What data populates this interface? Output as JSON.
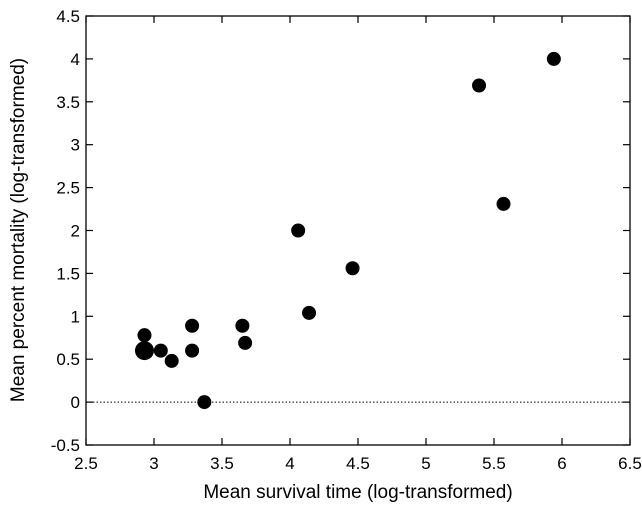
{
  "chart_data": {
    "type": "scatter",
    "title": "",
    "xlabel": "Mean survival time (log-transformed)",
    "ylabel": "Mean percent mortality (log-transformed)",
    "xlim": [
      2.5,
      6.5
    ],
    "ylim": [
      -0.5,
      4.5
    ],
    "xticks": [
      "2.5",
      "3",
      "3.5",
      "4",
      "4.5",
      "5",
      "5.5",
      "6",
      "6.5"
    ],
    "yticks": [
      "-0.5",
      "0",
      "0.5",
      "1",
      "1.5",
      "2",
      "2.5",
      "3",
      "3.5",
      "4",
      "4.5"
    ],
    "grid": false,
    "reference_line": {
      "y": 0,
      "style": "dotted"
    },
    "point_color": "#000000",
    "points": [
      {
        "x": 2.93,
        "y": 0.6,
        "size": "large"
      },
      {
        "x": 2.93,
        "y": 0.78,
        "size": "normal"
      },
      {
        "x": 3.05,
        "y": 0.6,
        "size": "normal"
      },
      {
        "x": 3.13,
        "y": 0.48,
        "size": "normal"
      },
      {
        "x": 3.28,
        "y": 0.89,
        "size": "normal"
      },
      {
        "x": 3.28,
        "y": 0.6,
        "size": "normal"
      },
      {
        "x": 3.37,
        "y": 0.0,
        "size": "normal"
      },
      {
        "x": 3.65,
        "y": 0.89,
        "size": "normal"
      },
      {
        "x": 3.67,
        "y": 0.69,
        "size": "normal"
      },
      {
        "x": 4.06,
        "y": 2.0,
        "size": "normal"
      },
      {
        "x": 4.14,
        "y": 1.04,
        "size": "normal"
      },
      {
        "x": 4.46,
        "y": 1.56,
        "size": "normal"
      },
      {
        "x": 5.39,
        "y": 3.69,
        "size": "normal"
      },
      {
        "x": 5.57,
        "y": 2.31,
        "size": "normal"
      },
      {
        "x": 5.94,
        "y": 4.0,
        "size": "normal"
      }
    ]
  }
}
